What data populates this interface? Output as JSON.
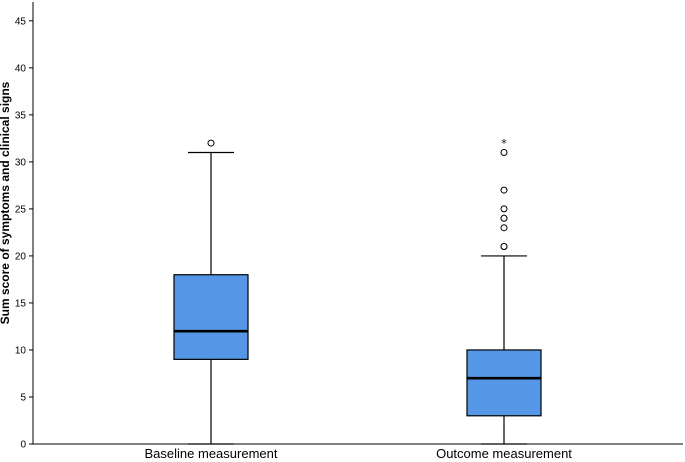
{
  "chart_data": {
    "type": "boxplot",
    "title": "",
    "xlabel": "",
    "ylabel": "Sum score of symptoms and clinical signs",
    "ylim": [
      0,
      47
    ],
    "yticks": [
      0,
      5,
      10,
      15,
      20,
      25,
      30,
      35,
      40,
      45
    ],
    "grid": false,
    "categories": [
      "Baseline measurement",
      "Outcome measurement"
    ],
    "boxes": [
      {
        "category": "Baseline measurement",
        "min": 0,
        "q1": 9,
        "median": 12,
        "q3": 18,
        "max": 31,
        "outliers": [
          32
        ],
        "extremes": []
      },
      {
        "category": "Outcome measurement",
        "min": 0,
        "q1": 3,
        "median": 7,
        "q3": 10,
        "max": 20,
        "outliers": [
          21,
          21,
          23,
          24,
          24,
          25,
          27,
          31
        ],
        "extremes": [
          32
        ]
      }
    ],
    "colors": {
      "box_fill": "#5596e6",
      "stroke": "#000000"
    },
    "extreme_marker": "*"
  }
}
